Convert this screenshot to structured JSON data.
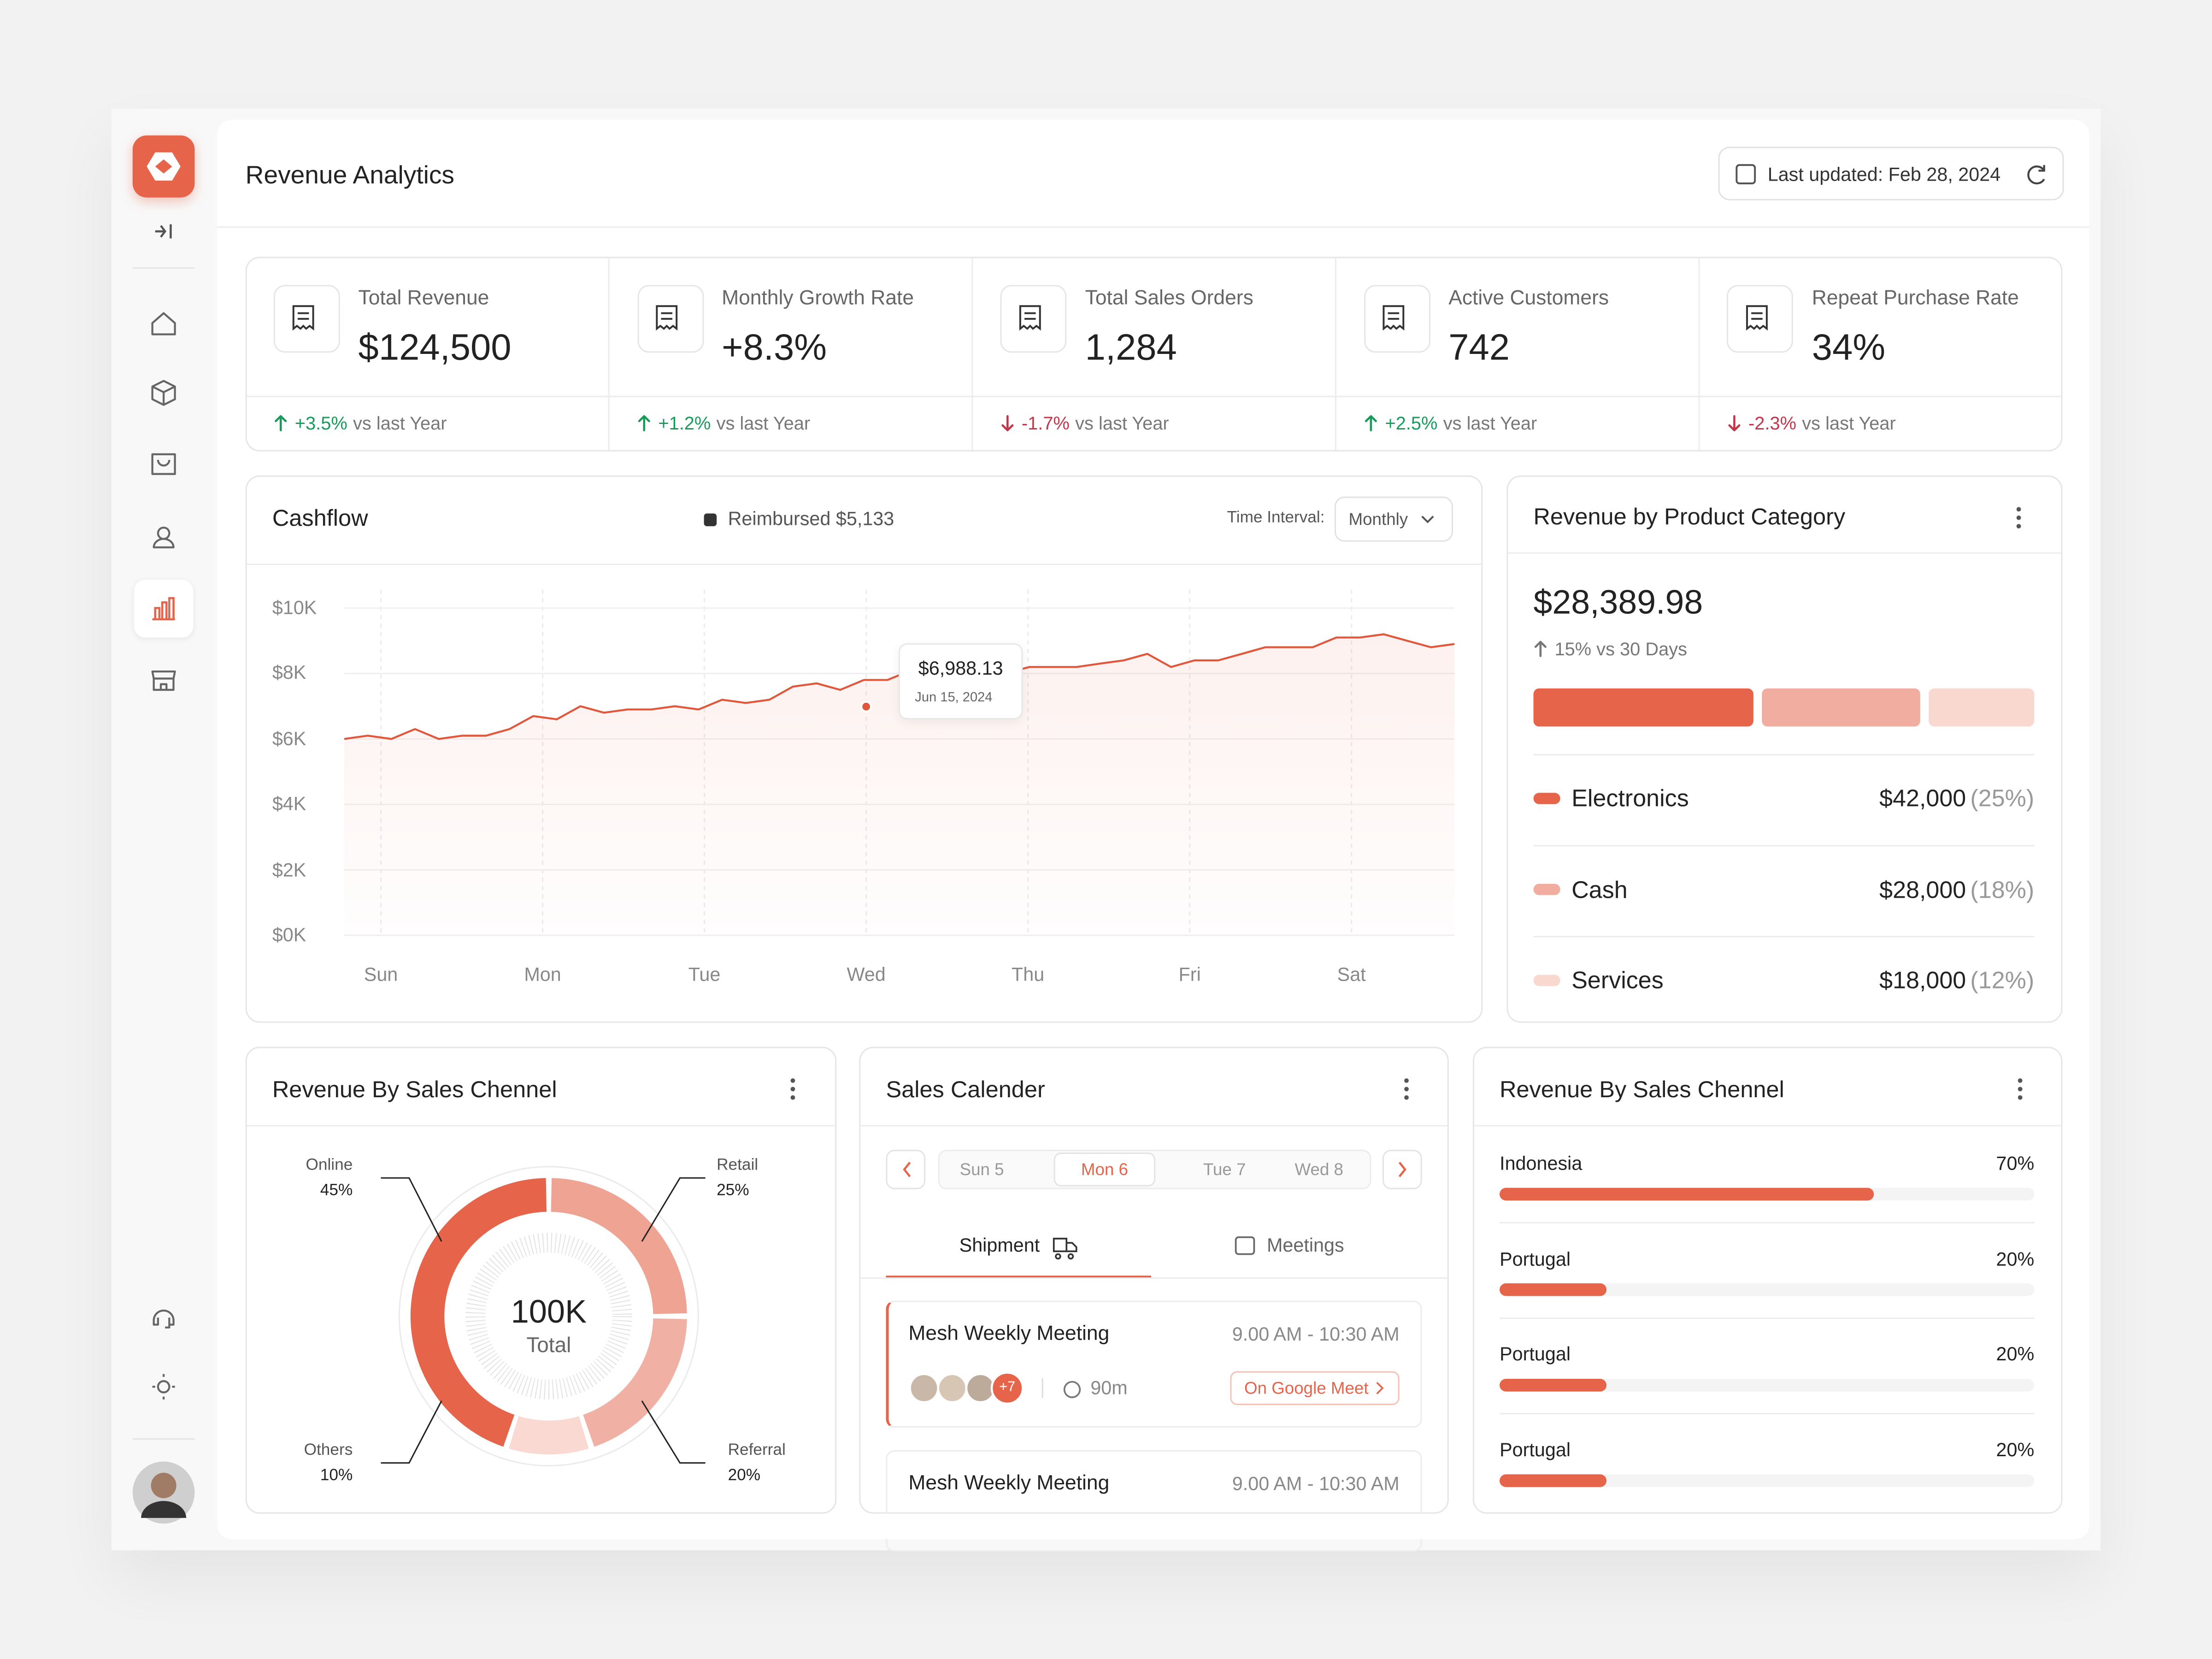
{
  "header": {
    "title": "Revenue Analytics",
    "last_updated": "Last updated: Feb 28, 2024"
  },
  "kpis": [
    {
      "label": "Total Revenue",
      "value": "$124,500",
      "change": "+3.5%",
      "trend": "up",
      "note": "vs last Year"
    },
    {
      "label": "Monthly Growth Rate",
      "value": "+8.3%",
      "change": "+1.2%",
      "trend": "up",
      "note": "vs last Year"
    },
    {
      "label": "Total Sales Orders",
      "value": "1,284",
      "change": "-1.7%",
      "trend": "down",
      "note": "vs last Year"
    },
    {
      "label": "Active Customers",
      "value": "742",
      "change": "+2.5%",
      "trend": "up",
      "note": "vs last Year"
    },
    {
      "label": "Repeat Purchase Rate",
      "value": "34%",
      "change": "-2.3%",
      "trend": "down",
      "note": "vs last Year"
    }
  ],
  "cashflow": {
    "title": "Cashflow",
    "legend": {
      "label": "Reimbursed $5,133",
      "color": "#333333"
    },
    "interval_label": "Time Interval:",
    "interval": "Monthly",
    "chart": {
      "type": "line",
      "color": "#e0573c",
      "x_labels": [
        "Sun",
        "Mon",
        "Tue",
        "Wed",
        "Thu",
        "Fri",
        "Sat"
      ],
      "values": [
        6000,
        6100,
        6000,
        6300,
        6000,
        6100,
        6100,
        6300,
        6700,
        6600,
        7000,
        6800,
        6900,
        6900,
        7000,
        6900,
        7200,
        7100,
        7200,
        7600,
        7700,
        7500,
        7800,
        7800,
        8100,
        7900,
        7800,
        7700,
        8000,
        8200,
        8200,
        8200,
        8300,
        8400,
        8600,
        8200,
        8400,
        8400,
        8600,
        8800,
        8800,
        8800,
        9100,
        9100,
        9200,
        9000,
        8800,
        8900
      ],
      "ylim": [
        0,
        10000
      ],
      "yticks": [
        {
          "value": 0,
          "label": "$0K"
        },
        {
          "value": 2000,
          "label": "$2K"
        },
        {
          "value": 4000,
          "label": "$4K"
        },
        {
          "value": 6000,
          "label": "$6K"
        },
        {
          "value": 8000,
          "label": "$8K"
        },
        {
          "value": 10000,
          "label": "$10K"
        }
      ],
      "grid": true,
      "tooltip": {
        "value": 6988.13,
        "label": "$6,988.13",
        "date": "Jun 15, 2024"
      }
    }
  },
  "product_category": {
    "title": "Revenue by Product Category",
    "total": "$28,389.98",
    "change": "15% vs 30 Days",
    "items": [
      {
        "name": "Electronics",
        "amount": "$42,000",
        "share": 25,
        "share_label": "(25%)",
        "color": "#e5644a"
      },
      {
        "name": "Cash",
        "amount": "$28,000",
        "share": 18,
        "share_label": "(18%)",
        "color": "#f0ada0"
      },
      {
        "name": "Services",
        "amount": "$18,000",
        "share": 12,
        "share_label": "(12%)",
        "color": "#f9d8d0"
      }
    ]
  },
  "channel_donut": {
    "title": "Revenue By Sales Chennel",
    "center_value": "100K",
    "center_label": "Total",
    "chart": {
      "type": "donut",
      "categories": [
        "Online",
        "Retail",
        "Referral",
        "Others"
      ],
      "values": [
        45,
        25,
        20,
        10
      ],
      "value_labels": [
        "45%",
        "25%",
        "20%",
        "10%"
      ],
      "colors": [
        "#e5644a",
        "#eea393",
        "#f0b1a4",
        "#f9d9d1"
      ]
    }
  },
  "calendar": {
    "title": "Sales Calender",
    "days": [
      {
        "label": "Sun 5",
        "active": false
      },
      {
        "label": "Mon 6",
        "active": true
      },
      {
        "label": "Tue 7",
        "active": false
      },
      {
        "label": "Wed 8",
        "active": false
      }
    ],
    "tabs": [
      {
        "label": "Shipment",
        "active": true
      },
      {
        "label": "Meetings",
        "active": false
      }
    ],
    "events": [
      {
        "title": "Mesh Weekly Meeting",
        "time": "9.00 AM - 10:30 AM",
        "attendees_more": "+7",
        "duration": "90m",
        "link": "On Google Meet"
      },
      {
        "title": "Mesh Weekly Meeting",
        "time": "9.00 AM - 10:30 AM"
      }
    ]
  },
  "channel_bars": {
    "title": "Revenue By Sales Chennel",
    "chart": {
      "type": "bar",
      "orientation": "horizontal",
      "categories": [
        "Indonesia",
        "Portugal",
        "Portugal",
        "Portugal"
      ],
      "values": [
        70,
        20,
        20,
        20
      ],
      "value_labels": [
        "70%",
        "20%",
        "20%",
        "20%"
      ],
      "xlim": [
        0,
        100
      ],
      "color": "#e5644a"
    }
  }
}
